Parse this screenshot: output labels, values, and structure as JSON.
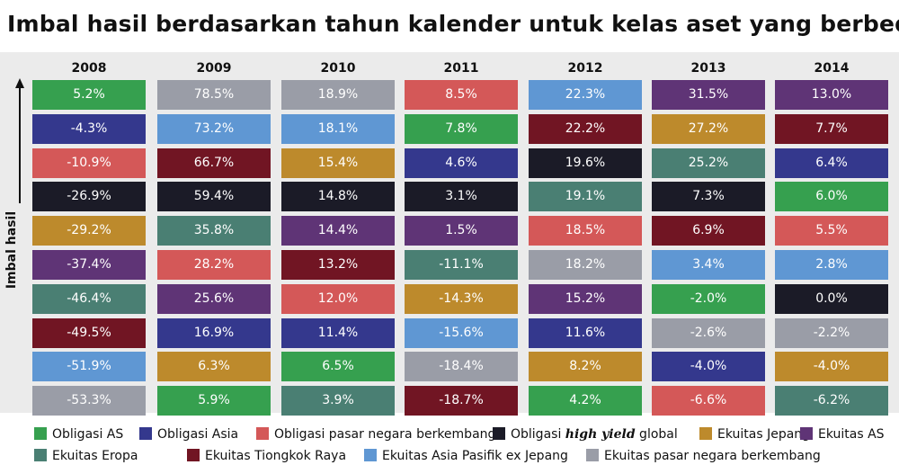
{
  "title": "Imbal hasil berdasarkan tahun kalender untuk kelas aset yang berbeda",
  "chart_data": {
    "type": "table",
    "title": "Imbal hasil berdasarkan tahun kalender untuk kelas aset yang berbeda",
    "ylabel": "Imbal hasil",
    "years": [
      "2008",
      "2009",
      "2010",
      "2011",
      "2012",
      "2013",
      "2014"
    ],
    "assets": [
      {
        "name": "Obligasi AS",
        "color": "#36a04f"
      },
      {
        "name": "Obligasi Asia",
        "color": "#34388d"
      },
      {
        "name": "Obligasi pasar negara berkembang",
        "color": "#d45858"
      },
      {
        "name": "Obligasi high yield global",
        "color": "#1b1b27"
      },
      {
        "name": "Ekuitas Jepang",
        "color": "#bd8a2c"
      },
      {
        "name": "Ekuitas AS",
        "color": "#5f3476"
      },
      {
        "name": "Ekuitas Eropa",
        "color": "#4a7f73"
      },
      {
        "name": "Ekuitas Tiongkok Raya",
        "color": "#711523"
      },
      {
        "name": "Ekuitas Asia Pasifik ex Jepang",
        "color": "#5f97d3"
      },
      {
        "name": "Ekuitas pasar negara berkembang",
        "color": "#9a9da7"
      }
    ],
    "columns": [
      {
        "year": "2008",
        "cells": [
          {
            "asset": 0,
            "value": "5.2%"
          },
          {
            "asset": 1,
            "value": "-4.3%"
          },
          {
            "asset": 2,
            "value": "-10.9%"
          },
          {
            "asset": 3,
            "value": "-26.9%"
          },
          {
            "asset": 4,
            "value": "-29.2%"
          },
          {
            "asset": 5,
            "value": "-37.4%"
          },
          {
            "asset": 6,
            "value": "-46.4%"
          },
          {
            "asset": 7,
            "value": "-49.5%"
          },
          {
            "asset": 8,
            "value": "-51.9%"
          },
          {
            "asset": 9,
            "value": "-53.3%"
          }
        ]
      },
      {
        "year": "2009",
        "cells": [
          {
            "asset": 9,
            "value": "78.5%"
          },
          {
            "asset": 8,
            "value": "73.2%"
          },
          {
            "asset": 7,
            "value": "66.7%"
          },
          {
            "asset": 3,
            "value": "59.4%"
          },
          {
            "asset": 6,
            "value": "35.8%"
          },
          {
            "asset": 2,
            "value": "28.2%"
          },
          {
            "asset": 5,
            "value": "25.6%"
          },
          {
            "asset": 1,
            "value": "16.9%"
          },
          {
            "asset": 4,
            "value": "6.3%"
          },
          {
            "asset": 0,
            "value": "5.9%"
          }
        ]
      },
      {
        "year": "2010",
        "cells": [
          {
            "asset": 9,
            "value": "18.9%"
          },
          {
            "asset": 8,
            "value": "18.1%"
          },
          {
            "asset": 4,
            "value": "15.4%"
          },
          {
            "asset": 3,
            "value": "14.8%"
          },
          {
            "asset": 5,
            "value": "14.4%"
          },
          {
            "asset": 7,
            "value": "13.2%"
          },
          {
            "asset": 2,
            "value": "12.0%"
          },
          {
            "asset": 1,
            "value": "11.4%"
          },
          {
            "asset": 0,
            "value": "6.5%"
          },
          {
            "asset": 6,
            "value": "3.9%"
          }
        ]
      },
      {
        "year": "2011",
        "cells": [
          {
            "asset": 2,
            "value": "8.5%"
          },
          {
            "asset": 0,
            "value": "7.8%"
          },
          {
            "asset": 1,
            "value": "4.6%"
          },
          {
            "asset": 3,
            "value": "3.1%"
          },
          {
            "asset": 5,
            "value": "1.5%"
          },
          {
            "asset": 6,
            "value": "-11.1%"
          },
          {
            "asset": 4,
            "value": "-14.3%"
          },
          {
            "asset": 8,
            "value": "-15.6%"
          },
          {
            "asset": 9,
            "value": "-18.4%"
          },
          {
            "asset": 7,
            "value": "-18.7%"
          }
        ]
      },
      {
        "year": "2012",
        "cells": [
          {
            "asset": 8,
            "value": "22.3%"
          },
          {
            "asset": 7,
            "value": "22.2%"
          },
          {
            "asset": 3,
            "value": "19.6%"
          },
          {
            "asset": 6,
            "value": "19.1%"
          },
          {
            "asset": 2,
            "value": "18.5%"
          },
          {
            "asset": 9,
            "value": "18.2%"
          },
          {
            "asset": 5,
            "value": "15.2%"
          },
          {
            "asset": 1,
            "value": "11.6%"
          },
          {
            "asset": 4,
            "value": "8.2%"
          },
          {
            "asset": 0,
            "value": "4.2%"
          }
        ]
      },
      {
        "year": "2013",
        "cells": [
          {
            "asset": 5,
            "value": "31.5%"
          },
          {
            "asset": 4,
            "value": "27.2%"
          },
          {
            "asset": 6,
            "value": "25.2%"
          },
          {
            "asset": 3,
            "value": "7.3%"
          },
          {
            "asset": 7,
            "value": "6.9%"
          },
          {
            "asset": 8,
            "value": "3.4%"
          },
          {
            "asset": 0,
            "value": "-2.0%"
          },
          {
            "asset": 9,
            "value": "-2.6%"
          },
          {
            "asset": 1,
            "value": "-4.0%"
          },
          {
            "asset": 2,
            "value": "-6.6%"
          }
        ]
      },
      {
        "year": "2014",
        "cells": [
          {
            "asset": 5,
            "value": "13.0%"
          },
          {
            "asset": 7,
            "value": "7.7%"
          },
          {
            "asset": 1,
            "value": "6.4%"
          },
          {
            "asset": 0,
            "value": "6.0%"
          },
          {
            "asset": 2,
            "value": "5.5%"
          },
          {
            "asset": 8,
            "value": "2.8%"
          },
          {
            "asset": 3,
            "value": "0.0%"
          },
          {
            "asset": 9,
            "value": "-2.2%"
          },
          {
            "asset": 4,
            "value": "-4.0%"
          },
          {
            "asset": 6,
            "value": "-6.2%"
          }
        ]
      }
    ]
  },
  "legend": {
    "items": [
      {
        "asset": 0,
        "label": "Obligasi AS"
      },
      {
        "asset": 1,
        "label": "Obligasi Asia"
      },
      {
        "asset": 2,
        "label": "Obligasi pasar negara berkembang"
      },
      {
        "asset": 3,
        "label_prefix": "Obligasi ",
        "label_italic": "high yield",
        "label_suffix": " global"
      },
      {
        "asset": 4,
        "label": "Ekuitas Jepang"
      },
      {
        "asset": 5,
        "label": "Ekuitas AS"
      },
      {
        "asset": 6,
        "label": "Ekuitas Eropa"
      },
      {
        "asset": 7,
        "label": "Ekuitas Tiongkok Raya"
      },
      {
        "asset": 8,
        "label": "Ekuitas Asia Pasifik ex Jepang"
      },
      {
        "asset": 9,
        "label": "Ekuitas pasar negara berkembang"
      }
    ]
  }
}
